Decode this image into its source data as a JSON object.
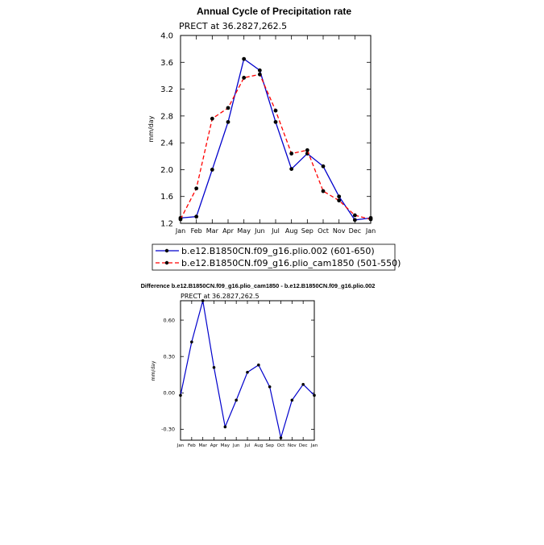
{
  "chart_data": [
    {
      "type": "line",
      "title": "Annual Cycle of Precipitation rate",
      "subtitle": "PRECT at 36.2827,262.5",
      "ylabel": "mm/day",
      "xlabel": "",
      "categories": [
        "Jan",
        "Feb",
        "Mar",
        "Apr",
        "May",
        "Jun",
        "Jul",
        "Aug",
        "Sep",
        "Oct",
        "Nov",
        "Dec",
        "Jan"
      ],
      "ylim": [
        1.2,
        4.0
      ],
      "yticks": [
        "1.2",
        "1.6",
        "2.0",
        "2.4",
        "2.8",
        "3.2",
        "3.6",
        "4.0"
      ],
      "series": [
        {
          "name": "b.e12.B1850CN.f09_g16.plio.002 (601-650)",
          "color": "#0000cc",
          "dash": "solid",
          "values": [
            1.28,
            1.3,
            2.0,
            2.71,
            3.65,
            3.48,
            2.71,
            2.01,
            2.24,
            2.05,
            1.6,
            1.25,
            1.28
          ]
        },
        {
          "name": "b.e12.B1850CN.f09_g16.plio_cam1850 (501-550)",
          "color": "#ff0000",
          "dash": "dashed",
          "values": [
            1.26,
            1.72,
            2.76,
            2.92,
            3.37,
            3.42,
            2.88,
            2.24,
            2.29,
            1.68,
            1.54,
            1.32,
            1.26
          ]
        }
      ],
      "legend_placement": "bottom"
    },
    {
      "type": "line",
      "title": "Difference b.e12.B1850CN.f09_g16.plio_cam1850 - b.e12.B1850CN.f09_g16.plio.002",
      "subtitle": "PRECT at 36.2827,262.5",
      "ylabel": "mm/day",
      "xlabel": "",
      "categories": [
        "Jan",
        "Feb",
        "Mar",
        "Apr",
        "May",
        "Jun",
        "Jul",
        "Aug",
        "Sep",
        "Oct",
        "Nov",
        "Dec",
        "Jan"
      ],
      "ylim": [
        -0.39,
        0.76
      ],
      "yticks": [
        "-0.30",
        "0.00",
        "0.30",
        "0.60"
      ],
      "series": [
        {
          "color": "#0000cc",
          "dash": "solid",
          "values": [
            -0.02,
            0.42,
            0.76,
            0.21,
            -0.28,
            -0.06,
            0.17,
            0.23,
            0.05,
            -0.37,
            -0.06,
            0.07,
            -0.02
          ]
        }
      ]
    }
  ]
}
